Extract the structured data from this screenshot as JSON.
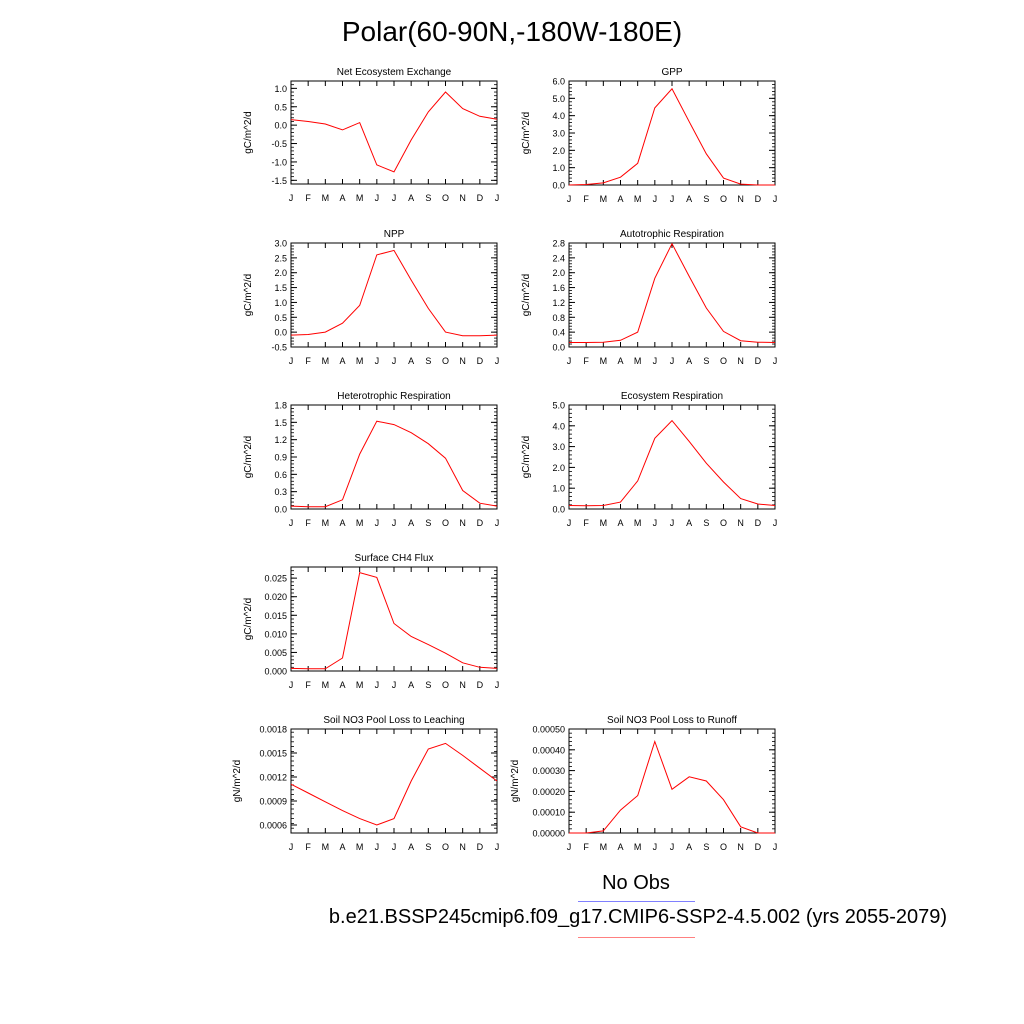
{
  "title": "Polar(60-90N,-180W-180E)",
  "legend": {
    "obs_label": "No Obs",
    "model_label": "b.e21.BSSP245cmip6.f09_g17.CMIP6-SSP2-4.5.002 (yrs 2055-2079)",
    "obs_color": "#8080ff",
    "model_color": "#ff8080"
  },
  "line_color": "#ff0000",
  "chart_data": [
    {
      "type": "line",
      "title": "Net Ecosystem Exchange",
      "ylabel": "gC/m^2/d",
      "x": [
        "J",
        "F",
        "M",
        "A",
        "M",
        "J",
        "J",
        "A",
        "S",
        "O",
        "N",
        "D",
        "J"
      ],
      "values": [
        0.15,
        0.1,
        0.03,
        -0.13,
        0.07,
        -1.08,
        -1.27,
        -0.4,
        0.36,
        0.9,
        0.45,
        0.24,
        0.16
      ],
      "ylim": [
        -1.6,
        1.2
      ],
      "yticks": [
        -1.5,
        -1.0,
        -0.5,
        0.0,
        0.5,
        1.0
      ],
      "yticklabels": [
        "-1.5",
        "-1.0",
        "-0.5",
        "0.0",
        "0.5",
        "1.0"
      ]
    },
    {
      "type": "line",
      "title": "GPP",
      "ylabel": "gC/m^2/d",
      "x": [
        "J",
        "F",
        "M",
        "A",
        "M",
        "J",
        "J",
        "A",
        "S",
        "O",
        "N",
        "D",
        "J"
      ],
      "values": [
        0.0,
        0.03,
        0.12,
        0.45,
        1.25,
        4.45,
        5.55,
        3.65,
        1.8,
        0.4,
        0.05,
        0.0,
        0.0
      ],
      "ylim": [
        0.0,
        6.0
      ],
      "yticks": [
        0.0,
        1.0,
        2.0,
        3.0,
        4.0,
        5.0,
        6.0
      ],
      "yticklabels": [
        "0.0",
        "1.0",
        "2.0",
        "3.0",
        "4.0",
        "5.0",
        "6.0"
      ]
    },
    {
      "type": "line",
      "title": "NPP",
      "ylabel": "gC/m^2/d",
      "x": [
        "J",
        "F",
        "M",
        "A",
        "M",
        "J",
        "J",
        "A",
        "S",
        "O",
        "N",
        "D",
        "J"
      ],
      "values": [
        -0.1,
        -0.08,
        0.0,
        0.3,
        0.9,
        2.6,
        2.75,
        1.75,
        0.8,
        0.0,
        -0.12,
        -0.12,
        -0.1
      ],
      "ylim": [
        -0.5,
        3.0
      ],
      "yticks": [
        -0.5,
        0.0,
        0.5,
        1.0,
        1.5,
        2.0,
        2.5,
        3.0
      ],
      "yticklabels": [
        "-0.5",
        "0.0",
        "0.5",
        "1.0",
        "1.5",
        "2.0",
        "2.5",
        "3.0"
      ]
    },
    {
      "type": "line",
      "title": "Autotrophic Respiration",
      "ylabel": "gC/m^2/d",
      "x": [
        "J",
        "F",
        "M",
        "A",
        "M",
        "J",
        "J",
        "A",
        "S",
        "O",
        "N",
        "D",
        "J"
      ],
      "values": [
        0.12,
        0.12,
        0.13,
        0.18,
        0.4,
        1.85,
        2.78,
        1.9,
        1.05,
        0.42,
        0.17,
        0.13,
        0.12
      ],
      "ylim": [
        0.0,
        2.8
      ],
      "yticks": [
        0.0,
        0.4,
        0.8,
        1.2,
        1.6,
        2.0,
        2.4,
        2.8
      ],
      "yticklabels": [
        "0.0",
        "0.4",
        "0.8",
        "1.2",
        "1.6",
        "2.0",
        "2.4",
        "2.8"
      ]
    },
    {
      "type": "line",
      "title": "Heterotrophic Respiration",
      "ylabel": "gC/m^2/d",
      "x": [
        "J",
        "F",
        "M",
        "A",
        "M",
        "J",
        "J",
        "A",
        "S",
        "O",
        "N",
        "D",
        "J"
      ],
      "values": [
        0.05,
        0.04,
        0.04,
        0.16,
        0.95,
        1.52,
        1.46,
        1.32,
        1.13,
        0.88,
        0.32,
        0.1,
        0.05
      ],
      "ylim": [
        0.0,
        1.8
      ],
      "yticks": [
        0.0,
        0.3,
        0.6,
        0.9,
        1.2,
        1.5,
        1.8
      ],
      "yticklabels": [
        "0.0",
        "0.3",
        "0.6",
        "0.9",
        "1.2",
        "1.5",
        "1.8"
      ]
    },
    {
      "type": "line",
      "title": "Ecosystem Respiration",
      "ylabel": "gC/m^2/d",
      "x": [
        "J",
        "F",
        "M",
        "A",
        "M",
        "J",
        "J",
        "A",
        "S",
        "O",
        "N",
        "D",
        "J"
      ],
      "values": [
        0.17,
        0.16,
        0.17,
        0.33,
        1.35,
        3.4,
        4.25,
        3.25,
        2.2,
        1.3,
        0.5,
        0.24,
        0.17
      ],
      "ylim": [
        0.0,
        5.0
      ],
      "yticks": [
        0.0,
        1.0,
        2.0,
        3.0,
        4.0,
        5.0
      ],
      "yticklabels": [
        "0.0",
        "1.0",
        "2.0",
        "3.0",
        "4.0",
        "5.0"
      ]
    },
    {
      "type": "line",
      "title": "Surface CH4 Flux",
      "ylabel": "gC/m^2/d",
      "x": [
        "J",
        "F",
        "M",
        "A",
        "M",
        "J",
        "J",
        "A",
        "S",
        "O",
        "N",
        "D",
        "J"
      ],
      "values": [
        0.0007,
        0.0006,
        0.0006,
        0.0035,
        0.0265,
        0.0252,
        0.0128,
        0.0093,
        0.0071,
        0.0048,
        0.0022,
        0.001,
        0.0007
      ],
      "ylim": [
        0.0,
        0.028
      ],
      "yticks": [
        0.0,
        0.005,
        0.01,
        0.015,
        0.02,
        0.025
      ],
      "yticklabels": [
        "0.000",
        "0.005",
        "0.010",
        "0.015",
        "0.020",
        "0.025"
      ]
    },
    {
      "type": "line",
      "title": "Soil NO3 Pool Loss to Leaching",
      "ylabel": "gN/m^2/d",
      "x": [
        "J",
        "F",
        "M",
        "A",
        "M",
        "J",
        "J",
        "A",
        "S",
        "O",
        "N",
        "D",
        "J"
      ],
      "values": [
        0.00111,
        0.001,
        0.00089,
        0.00078,
        0.00068,
        0.0006,
        0.00068,
        0.00115,
        0.00155,
        0.00162,
        0.00147,
        0.00131,
        0.00115
      ],
      "ylim": [
        0.0005,
        0.0018
      ],
      "yticks": [
        0.0006,
        0.0009,
        0.0012,
        0.0015,
        0.0018
      ],
      "yticklabels": [
        "0.0006",
        "0.0009",
        "0.0012",
        "0.0015",
        "0.0018"
      ]
    },
    {
      "type": "line",
      "title": "Soil NO3 Pool Loss to Runoff",
      "ylabel": "gN/m^2/d",
      "x": [
        "J",
        "F",
        "M",
        "A",
        "M",
        "J",
        "J",
        "A",
        "S",
        "O",
        "N",
        "D",
        "J"
      ],
      "values": [
        0.0,
        0.0,
        1e-05,
        0.00011,
        0.00018,
        0.00044,
        0.00021,
        0.00027,
        0.00025,
        0.00016,
        3e-05,
        0.0,
        0.0
      ],
      "ylim": [
        0.0,
        0.0005
      ],
      "yticks": [
        0.0,
        0.0001,
        0.0002,
        0.0003,
        0.0004,
        0.0005
      ],
      "yticklabels": [
        "0.00000",
        "0.00010",
        "0.00020",
        "0.00030",
        "0.00040",
        "0.00050"
      ]
    }
  ]
}
